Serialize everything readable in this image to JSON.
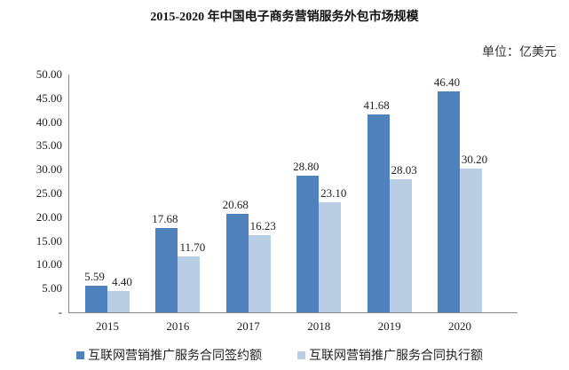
{
  "chart_data": {
    "type": "bar",
    "title": "2015-2020 年中国电子商务营销服务外包市场规模",
    "unit": "单位：亿美元",
    "xlabel": "",
    "ylabel": "",
    "categories": [
      "2015",
      "2016",
      "2017",
      "2018",
      "2019",
      "2020"
    ],
    "series": [
      {
        "name": "互联网营销推广服务合同签约额",
        "color": "#4f81bd",
        "values": [
          5.59,
          17.68,
          20.68,
          28.8,
          41.68,
          46.4
        ],
        "labels": [
          "5.59",
          "17.68",
          "20.68",
          "28.80",
          "41.68",
          "46.40"
        ]
      },
      {
        "name": "互联网营销推广服务合同执行额",
        "color": "#b9cde5",
        "values": [
          4.4,
          11.7,
          16.23,
          23.1,
          28.03,
          30.2
        ],
        "labels": [
          "4.40",
          "11.70",
          "16.23",
          "23.10",
          "28.03",
          "30.20"
        ]
      }
    ],
    "ylim": [
      0,
      50
    ],
    "yticks": [
      "-",
      "5.00",
      "10.00",
      "15.00",
      "20.00",
      "25.00",
      "30.00",
      "35.00",
      "40.00",
      "45.00",
      "50.00"
    ],
    "grid": false,
    "legend_position": "bottom"
  }
}
